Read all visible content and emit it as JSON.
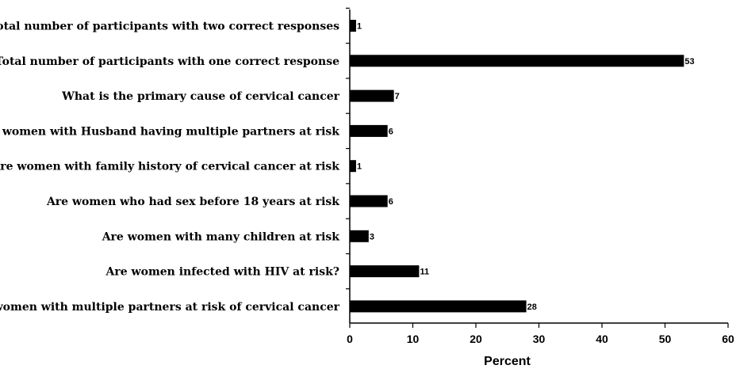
{
  "chart_data": {
    "type": "bar",
    "orientation": "horizontal",
    "title": "",
    "xlabel": "Percent",
    "ylabel": "",
    "xlim": [
      0,
      60
    ],
    "xticks": [
      0,
      10,
      20,
      30,
      40,
      50,
      60
    ],
    "grid": false,
    "legend": "none",
    "bar_color": "#000000",
    "categories": [
      "Total number of participants with two correct responses",
      "Total number of participants with one correct response",
      "What is the primary cause of cervical cancer",
      "Are women with Husband having multiple partners at risk",
      "Are women with family history of cervical cancer at risk",
      "Are women who had sex before 18 years at risk",
      "Are women with many children at risk",
      "Are women infected with HIV at risk?",
      "Are women with multiple partners at risk of cervical cancer"
    ],
    "values": [
      1,
      53,
      7,
      6,
      1,
      6,
      3,
      11,
      28
    ],
    "data_labels": [
      "1",
      "53",
      "7",
      "6",
      "1",
      "6",
      "3",
      "11",
      "28"
    ]
  }
}
